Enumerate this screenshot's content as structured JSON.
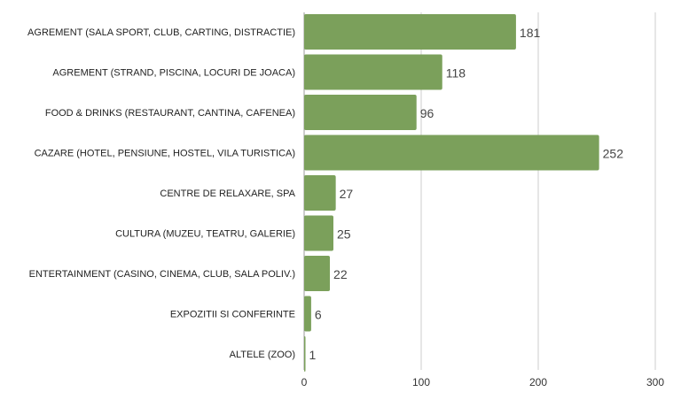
{
  "chart_data": {
    "type": "bar",
    "orientation": "horizontal",
    "categories": [
      "AGREMENT (SALA SPORT, CLUB, CARTING, DISTRACTIE)",
      "AGREMENT (STRAND, PISCINA, LOCURI DE JOACA)",
      "FOOD & DRINKS (RESTAURANT, CANTINA, CAFENEA)",
      "CAZARE (HOTEL, PENSIUNE, HOSTEL, VILA TURISTICA)",
      "CENTRE DE RELAXARE, SPA",
      "CULTURA (MUZEU, TEATRU, GALERIE)",
      "ENTERTAINMENT (CASINO, CINEMA, CLUB, SALA POLIV.)",
      "EXPOZITII SI CONFERINTE",
      "ALTELE (ZOO)"
    ],
    "values": [
      181,
      118,
      96,
      252,
      27,
      25,
      22,
      6,
      1
    ],
    "xlim": [
      0,
      300
    ],
    "xticks": [
      0,
      100,
      200,
      300
    ],
    "grid": true,
    "legend": "none",
    "color": "#7ba05b",
    "title": "",
    "xlabel": "",
    "ylabel": ""
  }
}
